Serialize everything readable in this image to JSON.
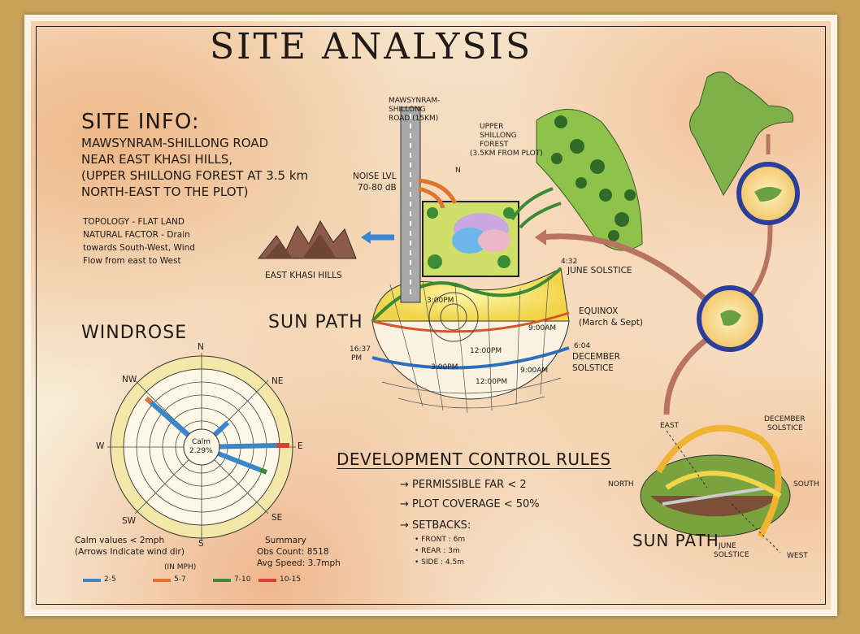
{
  "title": "SITE ANALYSIS",
  "site_info": {
    "heading": "SITE INFO:",
    "lines": [
      "MAWSYNRAM-SHILLONG ROAD",
      "NEAR EAST KHASI HILLS,",
      "(UPPER SHILLONG FOREST AT 3.5 km",
      "NORTH-EAST TO THE PLOT)"
    ],
    "notes": [
      "TOPOLOGY - FLAT LAND",
      "NATURAL FACTOR - Drain",
      "towards South-West, Wind",
      "Flow from east to West"
    ]
  },
  "labels": {
    "east_khasi_hills": "EAST KHASI HILLS",
    "noise_level": [
      "NOISE LVL",
      "70-80 dB"
    ],
    "road": [
      "MAWSYNRAM-",
      "SHILLONG",
      "ROAD (15KM)"
    ],
    "north": "N",
    "forest": [
      "UPPER",
      "SHILLONG",
      "FOREST",
      "(3.5KM FROM PLOT)"
    ]
  },
  "sun_path_top": {
    "label": "SUN PATH",
    "june_time": "4:32",
    "june": "JUNE SOLSTICE",
    "equinox": [
      "EQUINOX",
      "(March & Sept)"
    ],
    "december_time": "6:04",
    "december": [
      "DECEMBER",
      "SOLSTICE"
    ],
    "left_time": [
      "16:37",
      "PM"
    ],
    "hour_labels": [
      "3:00PM",
      "9:00AM",
      "12:00PM",
      "3:00PM",
      "9:00AM",
      "12:00PM"
    ]
  },
  "windrose": {
    "heading": "WINDROSE",
    "directions": {
      "n": "N",
      "ne": "NE",
      "e": "E",
      "se": "SE",
      "s": "S",
      "sw": "SW",
      "w": "W",
      "nw": "NW"
    },
    "calm": [
      "Calm",
      "2.29%"
    ],
    "notes_left": [
      "Calm values < 2mph",
      "(Arrows Indicate wind dir)"
    ],
    "notes_right": [
      "Summary",
      "Obs Count: 8518",
      "Avg Speed: 3.7mph"
    ],
    "unit": "(IN MPH)",
    "legend": [
      {
        "label": "2-5",
        "color": "#3b86c8"
      },
      {
        "label": "5-7",
        "color": "#e0742f"
      },
      {
        "label": "7-10",
        "color": "#3f8a3a"
      },
      {
        "label": "10-15",
        "color": "#d8413a"
      }
    ]
  },
  "rules": {
    "heading": "DEVELOPMENT CONTROL RULES",
    "items": [
      "→ PERMISSIBLE FAR < 2",
      "→ PLOT COVERAGE < 50%",
      "→ SETBACKS:"
    ],
    "setbacks": [
      "• FRONT : 6m",
      "• REAR : 3m",
      "• SIDE : 4.5m"
    ]
  },
  "sun_path_bottom": {
    "label": "SUN PATH",
    "east": "EAST",
    "north": "NORTH",
    "south": "SOUTH",
    "west": "WEST",
    "december": [
      "DECEMBER",
      "SOLSTICE"
    ],
    "june": [
      "JUNE",
      "SOLSTICE"
    ]
  }
}
